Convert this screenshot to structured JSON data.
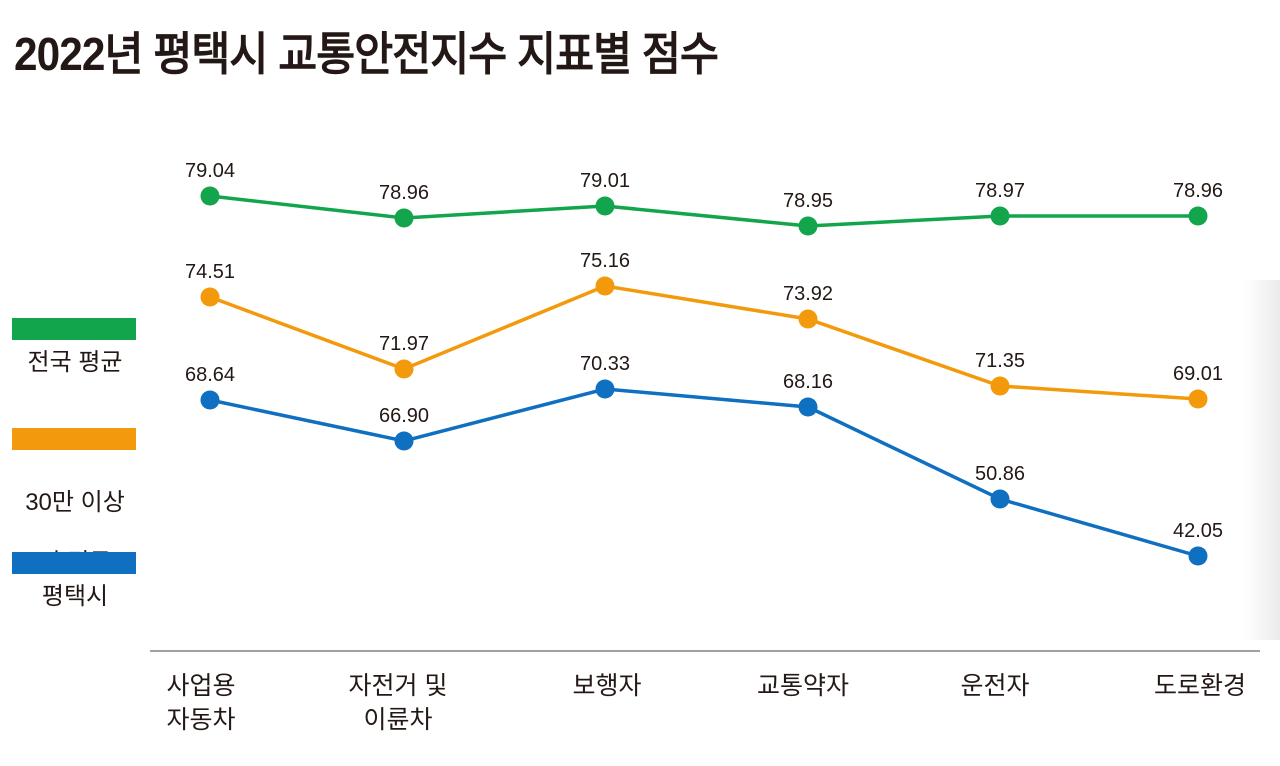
{
  "chart_data": {
    "type": "line",
    "title": "2022년 평택시 교통안전지수 지표별 점수",
    "xlabel": "",
    "ylabel": "",
    "grid": false,
    "legend_position": "left",
    "categories": [
      [
        "사업용",
        "자동차"
      ],
      [
        "자전거 및",
        "이륜차"
      ],
      [
        "보행자"
      ],
      [
        "교통약자"
      ],
      [
        "운전자"
      ],
      [
        "도로환경"
      ]
    ],
    "series": [
      {
        "name": "전국 평균",
        "label_lines": [
          "전국 평균"
        ],
        "color": "#13a54b",
        "values": [
          79.04,
          78.96,
          79.01,
          78.95,
          78.97,
          78.96
        ],
        "labels": [
          "79.04",
          "78.96",
          "79.01",
          "78.95",
          "78.97",
          "78.96"
        ]
      },
      {
        "name": "30만 이상 시 평균",
        "label_lines": [
          "30만 이상",
          "시 평균"
        ],
        "color": "#f39a0c",
        "values": [
          74.51,
          71.97,
          75.16,
          73.92,
          71.35,
          69.01
        ],
        "labels": [
          "74.51",
          "71.97",
          "75.16",
          "73.92",
          "71.35",
          "69.01"
        ]
      },
      {
        "name": "평택시",
        "label_lines": [
          "평택시"
        ],
        "color": "#0f6fc0",
        "values": [
          68.64,
          66.9,
          70.33,
          68.16,
          50.86,
          42.05
        ],
        "labels": [
          "68.64",
          "66.90",
          "70.33",
          "68.16",
          "50.86",
          "42.05"
        ]
      }
    ]
  }
}
